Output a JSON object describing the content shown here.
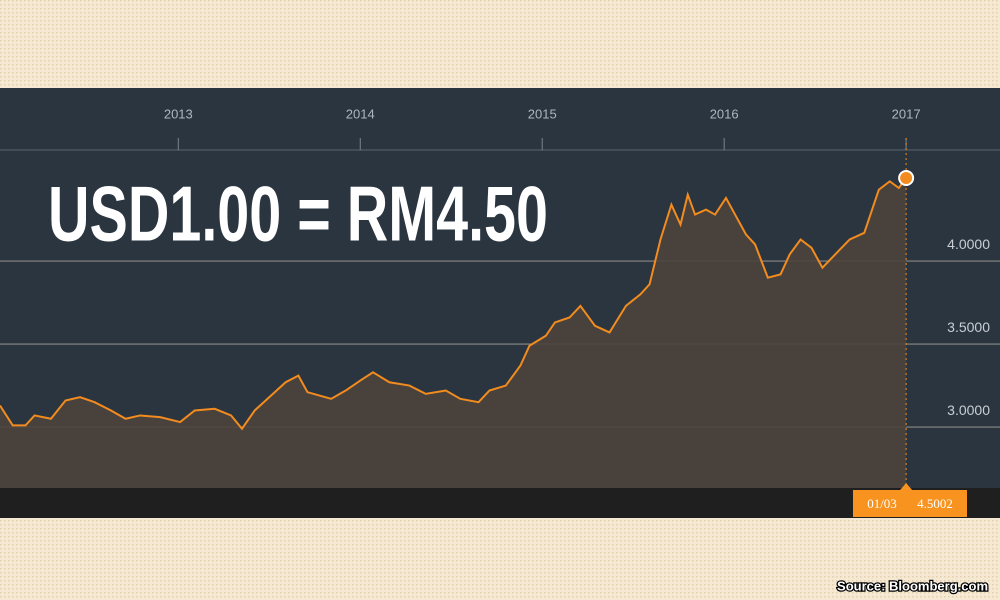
{
  "chart_data": {
    "type": "line",
    "area": true,
    "annotation": "USD1.00 = RM4.50",
    "source": "Source: Bloomberg.com",
    "crosshair_label": "01/03",
    "x": [
      2012.02,
      2012.09,
      2012.16,
      2012.21,
      2012.3,
      2012.38,
      2012.46,
      2012.54,
      2012.63,
      2012.71,
      2012.79,
      2012.9,
      2013.01,
      2013.09,
      2013.2,
      2013.29,
      2013.35,
      2013.42,
      2013.51,
      2013.59,
      2013.66,
      2013.71,
      2013.84,
      2013.92,
      2014.0,
      2014.07,
      2014.16,
      2014.27,
      2014.36,
      2014.47,
      2014.55,
      2014.65,
      2014.71,
      2014.8,
      2014.88,
      2014.93,
      2015.02,
      2015.07,
      2015.15,
      2015.21,
      2015.29,
      2015.37,
      2015.46,
      2015.54,
      2015.59,
      2015.65,
      2015.71,
      2015.76,
      2015.8,
      2015.84,
      2015.9,
      2015.95,
      2016.01,
      2016.06,
      2016.12,
      2016.17,
      2016.24,
      2016.31,
      2016.36,
      2016.42,
      2016.48,
      2016.54,
      2016.61,
      2016.69,
      2016.77,
      2016.85,
      2016.91,
      2016.96,
      2017.0
    ],
    "series": [
      {
        "color": "#f28c1e",
        "fill": "#4d423c",
        "values": [
          3.13,
          3.01,
          3.01,
          3.07,
          3.05,
          3.16,
          3.18,
          3.15,
          3.1,
          3.05,
          3.07,
          3.06,
          3.03,
          3.1,
          3.11,
          3.07,
          2.99,
          3.1,
          3.19,
          3.27,
          3.31,
          3.21,
          3.17,
          3.22,
          3.28,
          3.33,
          3.27,
          3.25,
          3.2,
          3.22,
          3.17,
          3.15,
          3.22,
          3.25,
          3.37,
          3.49,
          3.55,
          3.63,
          3.66,
          3.73,
          3.61,
          3.57,
          3.73,
          3.8,
          3.86,
          4.13,
          4.34,
          4.22,
          4.4,
          4.28,
          4.31,
          4.28,
          4.38,
          4.28,
          4.16,
          4.1,
          3.9,
          3.92,
          4.04,
          4.13,
          4.08,
          3.96,
          4.04,
          4.13,
          4.17,
          4.43,
          4.48,
          4.44,
          4.5002
        ]
      }
    ],
    "xlim": [
      2012.02,
      2017.516
    ],
    "xticks": [
      2013,
      2014,
      2015,
      2016,
      2017
    ],
    "ylim": [
      2.633,
      4.669
    ],
    "yticks": [
      {
        "value": 3,
        "label": "3.0000"
      },
      {
        "value": 3.5,
        "label": "3.5000"
      },
      {
        "value": 4,
        "label": "4.0000"
      }
    ],
    "grid": true
  }
}
